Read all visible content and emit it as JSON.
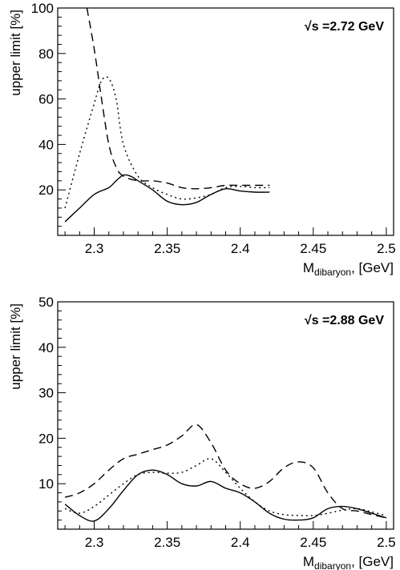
{
  "chart_data": [
    {
      "type": "line",
      "energy_label": "√s =2.72 GeV",
      "xlabel_main": "M",
      "xlabel_sub": "dibaryon",
      "xlabel_unit": ", [GeV]",
      "ylabel": "upper limit [%]",
      "xlim": [
        2.275,
        2.505
      ],
      "ylim": [
        0,
        100
      ],
      "xticks": [
        2.3,
        2.35,
        2.4,
        2.45,
        2.5
      ],
      "xtick_labels": [
        "2.3",
        "2.35",
        "2.4",
        "2.45",
        "2.5"
      ],
      "yticks": [
        20,
        40,
        60,
        80,
        100
      ],
      "ytick_labels": [
        "20",
        "40",
        "60",
        "80",
        "100"
      ],
      "grid": false,
      "series": [
        {
          "style": "solid",
          "x": [
            2.28,
            2.29,
            2.3,
            2.31,
            2.315,
            2.32,
            2.325,
            2.33,
            2.34,
            2.35,
            2.36,
            2.37,
            2.38,
            2.39,
            2.4,
            2.41,
            2.42
          ],
          "y": [
            6,
            12,
            18,
            21,
            24,
            26.5,
            26,
            24,
            20,
            15,
            13.5,
            14.5,
            18,
            20.5,
            19.5,
            19,
            19
          ]
        },
        {
          "style": "dashed",
          "x": [
            2.295,
            2.3,
            2.305,
            2.31,
            2.315,
            2.32,
            2.33,
            2.34,
            2.35,
            2.36,
            2.37,
            2.38,
            2.39,
            2.4,
            2.41,
            2.42
          ],
          "y": [
            100,
            82,
            60,
            40,
            30,
            26,
            24,
            24,
            23,
            21,
            20.5,
            21,
            22,
            22,
            22,
            22
          ]
        },
        {
          "style": "dotted",
          "x": [
            2.28,
            2.29,
            2.3,
            2.305,
            2.31,
            2.315,
            2.32,
            2.33,
            2.34,
            2.35,
            2.36,
            2.37,
            2.38,
            2.39,
            2.4,
            2.41,
            2.42
          ],
          "y": [
            12,
            36,
            58,
            68,
            69,
            60,
            40,
            26,
            21,
            18,
            16,
            16.5,
            18,
            21,
            21.5,
            21,
            21
          ]
        }
      ]
    },
    {
      "type": "line",
      "energy_label": "√s =2.88 GeV",
      "xlabel_main": "M",
      "xlabel_sub": "dibaryon",
      "xlabel_unit": ", [GeV]",
      "ylabel": "upper limit [%]",
      "xlim": [
        2.275,
        2.505
      ],
      "ylim": [
        0,
        50
      ],
      "xticks": [
        2.3,
        2.35,
        2.4,
        2.45,
        2.5
      ],
      "xtick_labels": [
        "2.3",
        "2.35",
        "2.4",
        "2.45",
        "2.5"
      ],
      "yticks": [
        10,
        20,
        30,
        40,
        50
      ],
      "ytick_labels": [
        "10",
        "20",
        "30",
        "40",
        "50"
      ],
      "grid": false,
      "series": [
        {
          "style": "solid",
          "x": [
            2.28,
            2.29,
            2.3,
            2.31,
            2.32,
            2.33,
            2.34,
            2.35,
            2.36,
            2.37,
            2.38,
            2.39,
            2.4,
            2.41,
            2.42,
            2.43,
            2.44,
            2.45,
            2.46,
            2.47,
            2.48,
            2.49,
            2.5
          ],
          "y": [
            5.5,
            3,
            1.8,
            4.5,
            8.5,
            12,
            13,
            12,
            10,
            9.5,
            10.5,
            9,
            8,
            6,
            3.5,
            2.2,
            2,
            2.5,
            4.5,
            5,
            4.5,
            3.5,
            2.5
          ]
        },
        {
          "style": "dashed",
          "x": [
            2.28,
            2.29,
            2.3,
            2.31,
            2.32,
            2.33,
            2.34,
            2.35,
            2.36,
            2.37,
            2.38,
            2.39,
            2.4,
            2.41,
            2.42,
            2.43,
            2.44,
            2.45,
            2.46,
            2.47,
            2.48,
            2.49,
            2.5
          ],
          "y": [
            7,
            8,
            10,
            13,
            15.5,
            16.5,
            17.5,
            18.5,
            20.5,
            23,
            19,
            13,
            10,
            9,
            10.5,
            13.5,
            14.8,
            13.5,
            8,
            4.5,
            4,
            3.2,
            2.5
          ]
        },
        {
          "style": "dotted",
          "x": [
            2.28,
            2.29,
            2.3,
            2.31,
            2.32,
            2.33,
            2.34,
            2.35,
            2.36,
            2.37,
            2.38,
            2.39,
            2.4,
            2.41,
            2.42,
            2.43,
            2.44,
            2.45,
            2.46,
            2.47,
            2.48,
            2.49,
            2.5
          ],
          "y": [
            4.5,
            3.5,
            5,
            7.5,
            10,
            12,
            12.5,
            12.3,
            12.5,
            14,
            15.5,
            12.5,
            9,
            6,
            4,
            3.2,
            3,
            3,
            3.5,
            4.2,
            4.5,
            3.8,
            3
          ]
        }
      ]
    }
  ]
}
